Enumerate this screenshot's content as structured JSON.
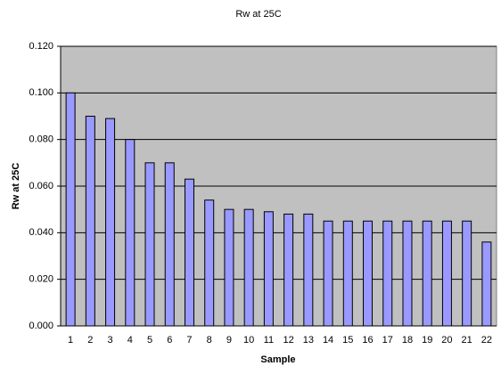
{
  "chart_data": {
    "type": "bar",
    "title": "Rw at 25C",
    "x_label": "Sample",
    "y_label": "Rw at 25C",
    "categories": [
      "1",
      "2",
      "3",
      "4",
      "5",
      "6",
      "7",
      "8",
      "9",
      "10",
      "11",
      "12",
      "13",
      "14",
      "15",
      "16",
      "17",
      "18",
      "19",
      "20",
      "21",
      "22"
    ],
    "values": [
      0.1,
      0.09,
      0.089,
      0.08,
      0.07,
      0.07,
      0.063,
      0.054,
      0.05,
      0.05,
      0.049,
      0.048,
      0.048,
      0.045,
      0.045,
      0.045,
      0.045,
      0.045,
      0.045,
      0.045,
      0.045,
      0.036
    ],
    "color": "#9999ff",
    "ylim": [
      0,
      0.12
    ],
    "yticks": [
      {
        "value": 0,
        "label": "0.000"
      },
      {
        "value": 0.02,
        "label": "0.020"
      },
      {
        "value": 0.04,
        "label": "0.040"
      },
      {
        "value": 0.06,
        "label": "0.060"
      },
      {
        "value": 0.08,
        "label": "0.080"
      },
      {
        "value": 0.1,
        "label": "0.100"
      },
      {
        "value": 0.12,
        "label": "0.120"
      }
    ],
    "grid": true
  }
}
